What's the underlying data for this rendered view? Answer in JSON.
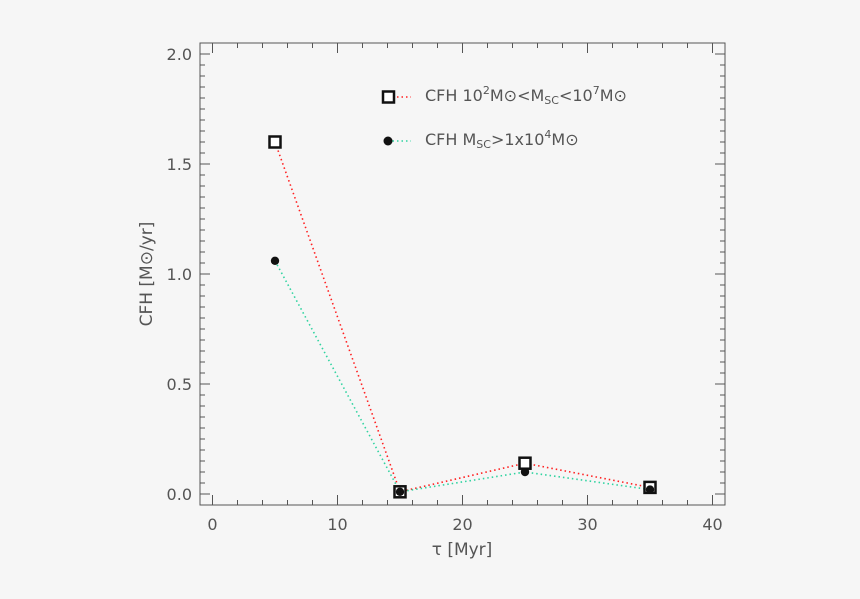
{
  "chart_data": {
    "type": "line",
    "xlabel": "τ [Myr]",
    "ylabel": "CFH [M⊙/yr]",
    "xlim": [
      -1,
      41
    ],
    "ylim": [
      -0.05,
      2.05
    ],
    "x_ticks": [
      "0",
      "10",
      "20",
      "30",
      "40"
    ],
    "y_ticks": [
      "0.0",
      "0.5",
      "1.0",
      "1.5",
      "2.0"
    ],
    "grid": false,
    "legend_position": "top-right",
    "series": [
      {
        "name": "CFH 10²M⊙<M_SC<10⁷M⊙",
        "x": [
          5,
          15,
          25,
          35
        ],
        "y": [
          1.6,
          0.01,
          0.14,
          0.03
        ],
        "color": "#ff2020",
        "marker": "open-square"
      },
      {
        "name": "CFH M_SC>1x10⁴M⊙",
        "x": [
          5,
          15,
          25,
          35
        ],
        "y": [
          1.06,
          0.01,
          0.1,
          0.02
        ],
        "color": "#2fd3a0",
        "marker": "filled-circle"
      }
    ]
  },
  "legend": {
    "entry1": {
      "prefix": "CFH  10",
      "exp1": "2",
      "m1": "M⊙<M",
      "sub": "SC",
      "m2": "<10",
      "exp2": "7",
      "m3": "M⊙"
    },
    "entry2": {
      "prefix": "CFH  M",
      "sub": "SC",
      "mid": ">1x10",
      "exp": "4",
      "suffix": "M⊙"
    }
  }
}
